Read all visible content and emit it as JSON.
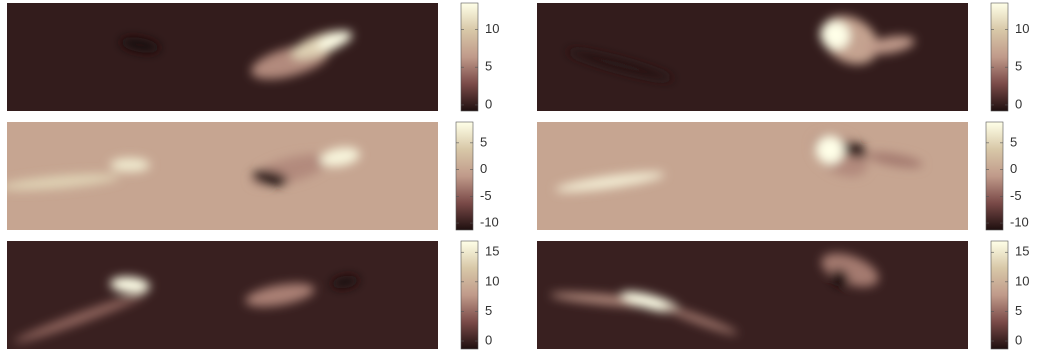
{
  "chart_data": [
    {
      "type": "heatmap",
      "colormap": [
        "#1e0f0f",
        "#7a4a48",
        "#c09a8a",
        "#d8c8a8",
        "#ffffe8"
      ],
      "ylim": [
        -0.8,
        13.5
      ],
      "yticks": [
        0,
        5,
        10
      ]
    },
    {
      "type": "heatmap",
      "colormap": [
        "#1e0f0f",
        "#7a4a48",
        "#c09a8a",
        "#d8c8a8",
        "#ffffe8"
      ],
      "ylim": [
        -0.8,
        13.5
      ],
      "yticks": [
        0,
        5,
        10
      ]
    },
    {
      "type": "heatmap",
      "colormap": [
        "#1e0f0f",
        "#7a4a48",
        "#c09a8a",
        "#d8c8a8",
        "#ffffe8"
      ],
      "ylim": [
        -11.3,
        8.9
      ],
      "yticks": [
        -10,
        -5,
        0,
        5
      ]
    },
    {
      "type": "heatmap",
      "colormap": [
        "#1e0f0f",
        "#7a4a48",
        "#c09a8a",
        "#d8c8a8",
        "#ffffe8"
      ],
      "ylim": [
        -11.3,
        8.9
      ],
      "yticks": [
        -10,
        -5,
        0,
        5
      ]
    },
    {
      "type": "heatmap",
      "colormap": [
        "#1e0f0f",
        "#7a4a48",
        "#c09a8a",
        "#d8c8a8",
        "#ffffe8"
      ],
      "ylim": [
        -1.35,
        16.9
      ],
      "yticks": [
        0,
        5,
        10,
        15
      ]
    },
    {
      "type": "heatmap",
      "colormap": [
        "#1e0f0f",
        "#7a4a48",
        "#c09a8a",
        "#d8c8a8",
        "#ffffe8"
      ],
      "ylim": [
        -1.35,
        16.9
      ],
      "yticks": [
        0,
        5,
        10,
        15
      ]
    }
  ]
}
